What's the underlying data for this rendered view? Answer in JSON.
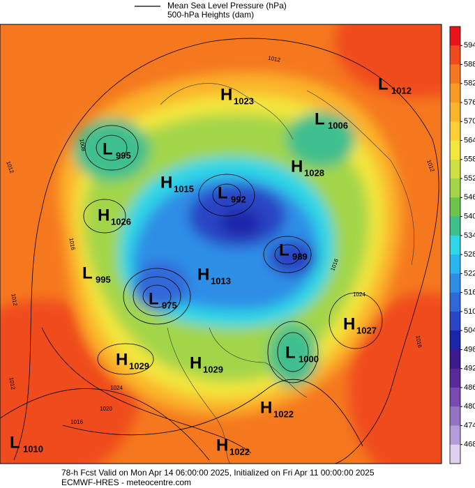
{
  "header": {
    "legend_line": "Mean Sea Level Pressure (hPa)",
    "subtitle": "500-hPa Heights (dam)"
  },
  "colorbar": {
    "levels": [
      594,
      588,
      582,
      576,
      570,
      564,
      558,
      552,
      546,
      540,
      534,
      528,
      522,
      516,
      510,
      504,
      498,
      492,
      486,
      480,
      474,
      468
    ],
    "colors": [
      "#e8141c",
      "#f04b1e",
      "#f5781f",
      "#f99a24",
      "#fbb42c",
      "#fdcf38",
      "#f3e63c",
      "#cfe042",
      "#a3d548",
      "#6cc44c",
      "#3fbf8e",
      "#2fd6e6",
      "#28b6ee",
      "#2e8ee6",
      "#3168d8",
      "#2a45c4",
      "#1c25a8",
      "#3a1a8c",
      "#5a2a9a",
      "#7a4ab0",
      "#9474c2",
      "#b49cd6",
      "#ddd0ec"
    ]
  },
  "centers": [
    {
      "type": "H",
      "value": "1023"
    },
    {
      "type": "L",
      "value": "1012"
    },
    {
      "type": "L",
      "value": "1006"
    },
    {
      "type": "L",
      "value": "995"
    },
    {
      "type": "H",
      "value": "1028"
    },
    {
      "type": "H",
      "value": "1015"
    },
    {
      "type": "L",
      "value": "992"
    },
    {
      "type": "H",
      "value": "1026"
    },
    {
      "type": "L",
      "value": "989"
    },
    {
      "type": "L",
      "value": "995"
    },
    {
      "type": "H",
      "value": "1013"
    },
    {
      "type": "L",
      "value": "975"
    },
    {
      "type": "H",
      "value": "1027"
    },
    {
      "type": "H",
      "value": "1029"
    },
    {
      "type": "H",
      "value": "1029"
    },
    {
      "type": "L",
      "value": "1000"
    },
    {
      "type": "H",
      "value": "1022"
    },
    {
      "type": "L",
      "value": "1010"
    },
    {
      "type": "H",
      "value": "1022"
    }
  ],
  "isobar_labels": [
    "1012",
    "1012",
    "1012",
    "1008",
    "1016",
    "1012",
    "1024",
    "1020",
    "1016",
    "1016",
    "1012",
    "1024",
    "1016"
  ],
  "footer": {
    "line1": "78-h Fcst Valid on Mon Apr 14 06:00:00 2025, Initialized on Fri Apr 11 00:00:00 2025",
    "line2": "ECMWF-HRES  - meteocentre.com"
  }
}
